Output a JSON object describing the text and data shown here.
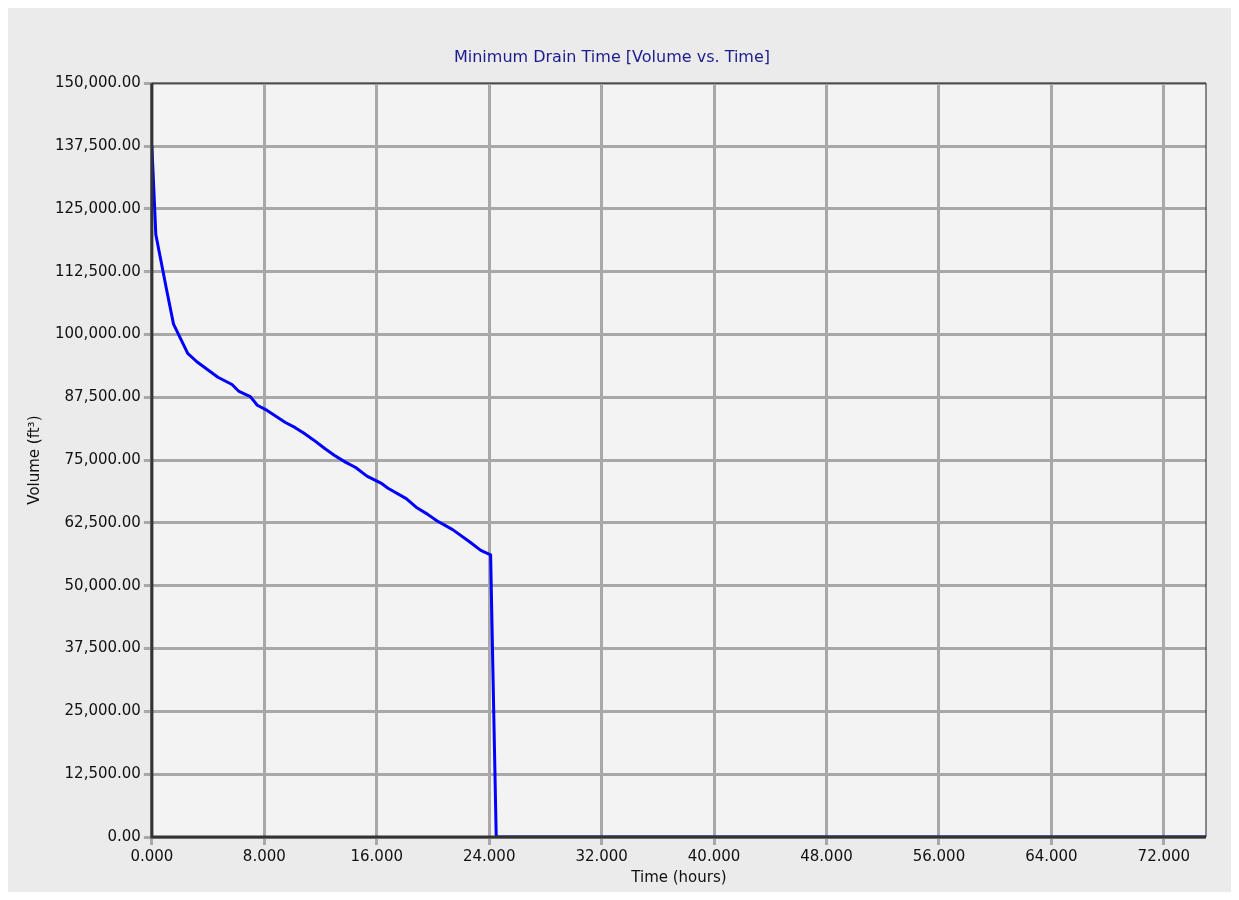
{
  "chart_data": {
    "type": "line",
    "title": "Minimum Drain Time [Volume vs. Time]",
    "xlabel": "Time (hours)",
    "ylabel": "Volume (ft³)",
    "x": [
      0,
      0.28,
      1.04,
      1.54,
      2.55,
      3.2,
      4.7,
      5.7,
      6.2,
      7.0,
      7.5,
      8.2,
      9.5,
      10.2,
      10.8,
      11.5,
      12.3,
      13.0,
      13.8,
      14.5,
      15.3,
      16.3,
      16.8,
      18.1,
      18.8,
      19.6,
      20.3,
      21.4,
      22.6,
      23.4,
      24.1,
      24.5,
      75
    ],
    "series": [
      {
        "color": "#0000ff",
        "values": [
          137500,
          119900,
          109000,
          102050,
          96220,
          94570,
          91480,
          90040,
          88660,
          87630,
          85920,
          84890,
          82480,
          81450,
          80380,
          79020,
          77300,
          75930,
          74550,
          73520,
          71800,
          70430,
          69400,
          67340,
          65620,
          64250,
          62870,
          61160,
          58750,
          57040,
          56150,
          0,
          0
        ]
      }
    ],
    "xlim": [
      0,
      75
    ],
    "xticks": [
      {
        "value": 0,
        "label": "0.000"
      },
      {
        "value": 8,
        "label": "8.000"
      },
      {
        "value": 16,
        "label": "16.000"
      },
      {
        "value": 24,
        "label": "24.000"
      },
      {
        "value": 32,
        "label": "32.000"
      },
      {
        "value": 40,
        "label": "40.000"
      },
      {
        "value": 48,
        "label": "48.000"
      },
      {
        "value": 56,
        "label": "56.000"
      },
      {
        "value": 64,
        "label": "64.000"
      },
      {
        "value": 72,
        "label": "72.000"
      }
    ],
    "ylim": [
      0,
      150000
    ],
    "yticks": [
      {
        "value": 0,
        "label": "0.00"
      },
      {
        "value": 12500,
        "label": "12,500.00"
      },
      {
        "value": 25000,
        "label": "25,000.00"
      },
      {
        "value": 37500,
        "label": "37,500.00"
      },
      {
        "value": 50000,
        "label": "50,000.00"
      },
      {
        "value": 62500,
        "label": "62,500.00"
      },
      {
        "value": 75000,
        "label": "75,000.00"
      },
      {
        "value": 87500,
        "label": "87,500.00"
      },
      {
        "value": 100000,
        "label": "100,000.00"
      },
      {
        "value": 112500,
        "label": "112,500.00"
      },
      {
        "value": 125000,
        "label": "125,000.00"
      },
      {
        "value": 137500,
        "label": "137,500.00"
      },
      {
        "value": 150000,
        "label": "150,000.00"
      }
    ],
    "grid": true,
    "legend": false,
    "marker": "none",
    "line_style": "solid"
  }
}
